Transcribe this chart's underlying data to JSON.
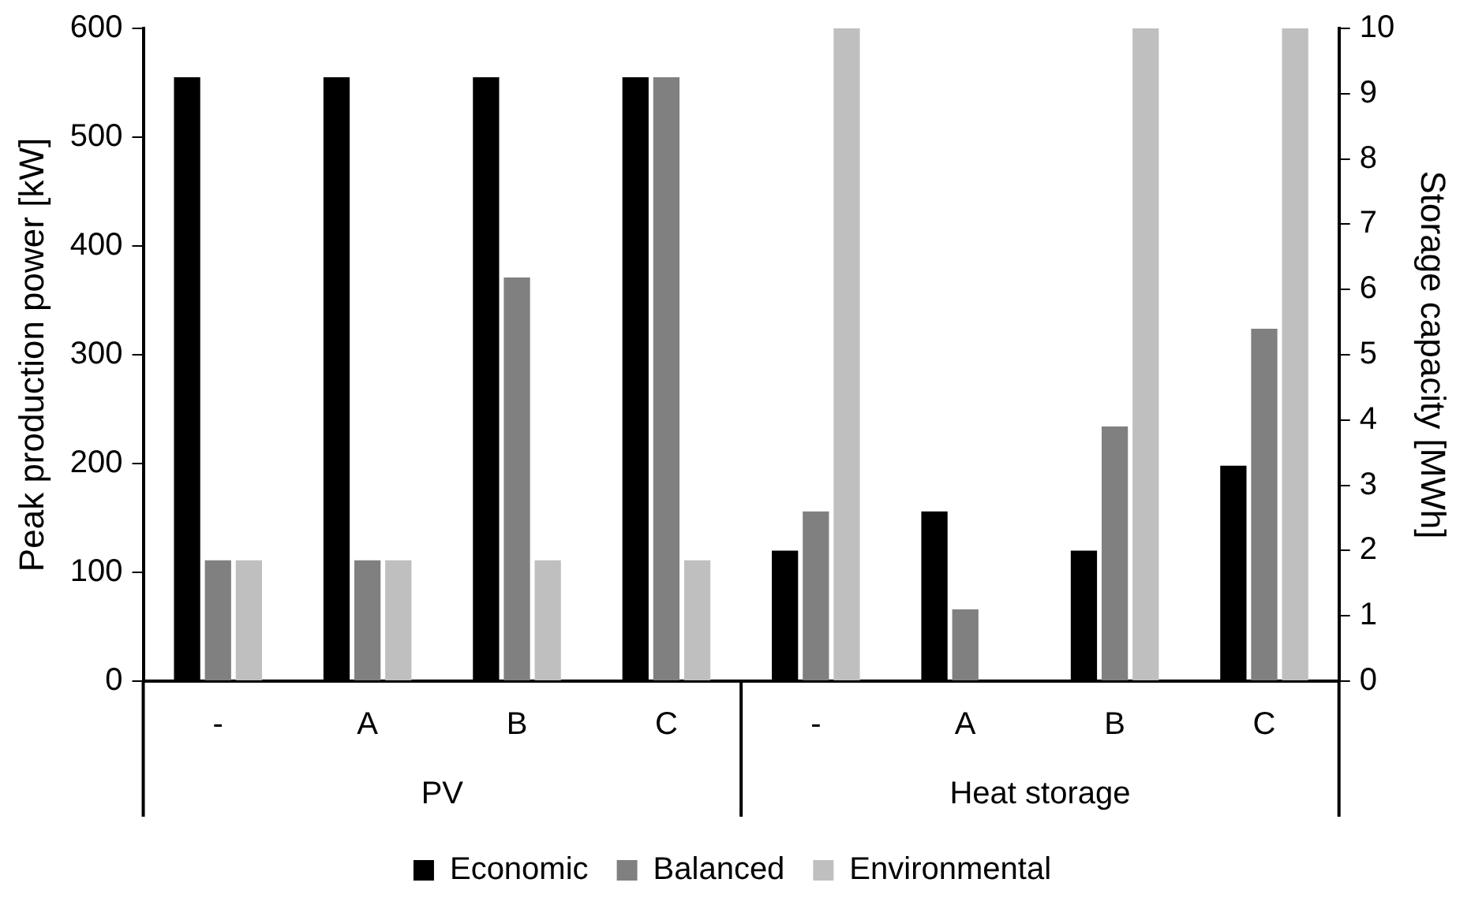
{
  "chart_data": {
    "type": "bar",
    "ylabel": "Peak production power [kW]",
    "y2label": "Storage capacity [MWh]",
    "categories": [
      "-",
      "A",
      "B",
      "C",
      "-",
      "A",
      "B",
      "C"
    ],
    "annotations": [
      "PV",
      "Heat storage"
    ],
    "series": [
      {
        "name": "Economic",
        "color": "#000000",
        "axis": "y",
        "values": [
          555,
          555,
          555,
          555,
          null,
          null,
          null,
          null
        ]
      },
      {
        "name": "Balanced",
        "color": "#808080",
        "axis": "y",
        "values": [
          111,
          111,
          371,
          555,
          null,
          null,
          null,
          null
        ]
      },
      {
        "name": "Environmental",
        "color": "#bfbfbf",
        "axis": "y",
        "values": [
          111,
          111,
          111,
          111,
          null,
          null,
          null,
          null
        ]
      },
      {
        "color": "#000000",
        "axis": "y2",
        "values": [
          null,
          null,
          null,
          null,
          2.0,
          2.6,
          2.0,
          3.3
        ]
      },
      {
        "color": "#808080",
        "axis": "y2",
        "values": [
          null,
          null,
          null,
          null,
          2.6,
          1.1,
          3.9,
          5.4
        ]
      },
      {
        "color": "#bfbfbf",
        "axis": "y2",
        "values": [
          null,
          null,
          null,
          null,
          10,
          null,
          10,
          10
        ]
      }
    ],
    "ylim": [
      0,
      600
    ],
    "yticks": [
      0,
      100,
      200,
      300,
      400,
      500,
      600
    ],
    "y2lim": [
      0,
      10
    ],
    "y2ticks": [
      0,
      1,
      2,
      3,
      4,
      5,
      6,
      7,
      8,
      9,
      10
    ],
    "grid": false,
    "legend": "bottom"
  }
}
